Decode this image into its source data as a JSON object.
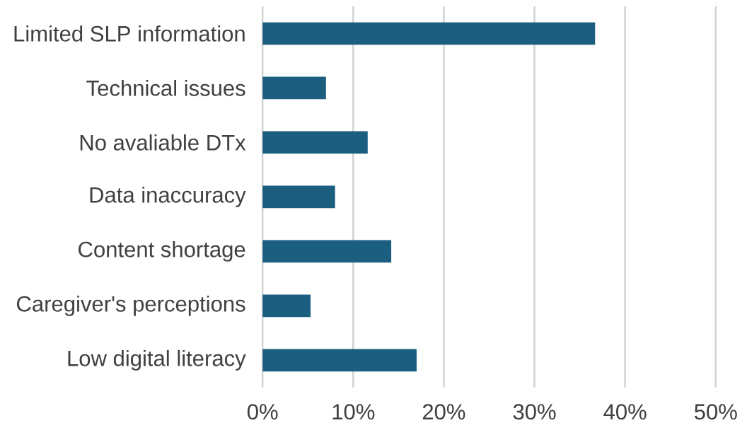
{
  "chart_data": {
    "type": "bar",
    "orientation": "horizontal",
    "categories": [
      "Limited SLP information",
      "Technical issues",
      "No avaliable DTx",
      "Data inaccuracy",
      "Content shortage",
      "Caregiver's perceptions",
      "Low digital literacy"
    ],
    "values": [
      36.7,
      7.0,
      11.6,
      8.0,
      14.2,
      5.3,
      17.0
    ],
    "color": "#1b5e80",
    "xlim": [
      0,
      50
    ],
    "xticks": [
      {
        "value": 0,
        "label": "0%"
      },
      {
        "value": 10,
        "label": "10%"
      },
      {
        "value": 20,
        "label": "20%"
      },
      {
        "value": 30,
        "label": "30%"
      },
      {
        "value": 40,
        "label": "40%"
      },
      {
        "value": 50,
        "label": "50%"
      }
    ],
    "grid": "x"
  }
}
